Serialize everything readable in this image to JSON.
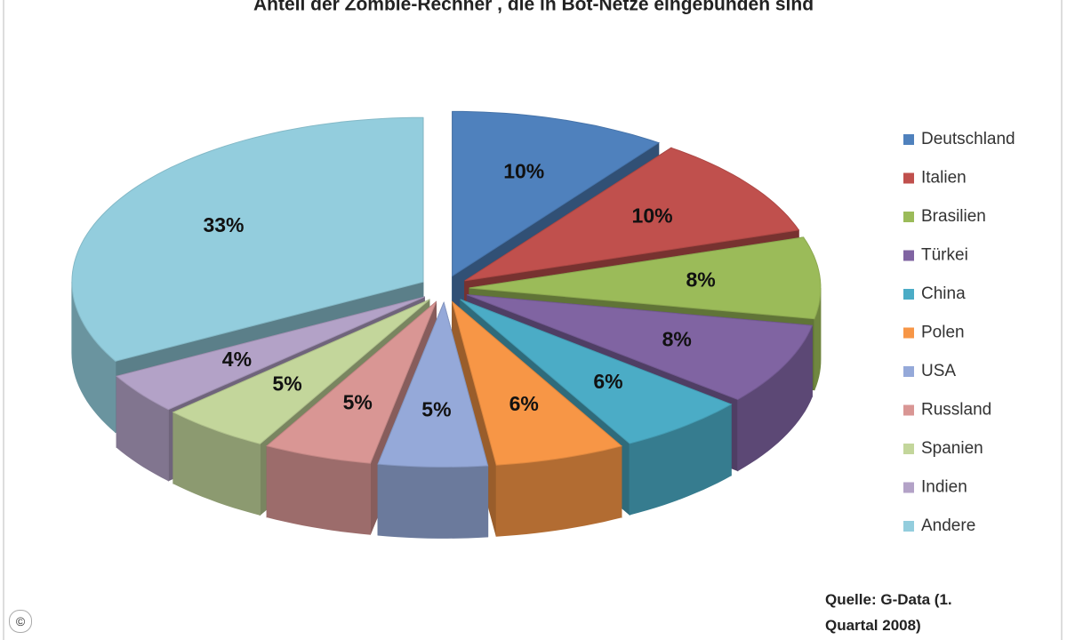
{
  "chart_data": {
    "type": "pie3d",
    "title": "Anteil der Zombie-Rechner , die in Bot-Netze eingebunden sind",
    "categories": [
      "Deutschland",
      "Italien",
      "Brasilien",
      "Türkei",
      "China",
      "Polen",
      "USA",
      "Russland",
      "Spanien",
      "Indien",
      "Andere"
    ],
    "values": [
      10,
      10,
      8,
      8,
      6,
      6,
      5,
      5,
      5,
      4,
      33
    ],
    "value_labels": [
      "10%",
      "10%",
      "8%",
      "8%",
      "6%",
      "6%",
      "5%",
      "5%",
      "5%",
      "4%",
      "33%"
    ],
    "colors": [
      "#4f81bd",
      "#c0504d",
      "#9bbb59",
      "#8064a2",
      "#4bacc6",
      "#f79646",
      "#95a9d9",
      "#d99694",
      "#c3d69b",
      "#b3a2c7",
      "#93cddd"
    ],
    "legend": "right",
    "source": "Quelle: G-Data (1. Quartal 2008)",
    "copyright": "©"
  }
}
